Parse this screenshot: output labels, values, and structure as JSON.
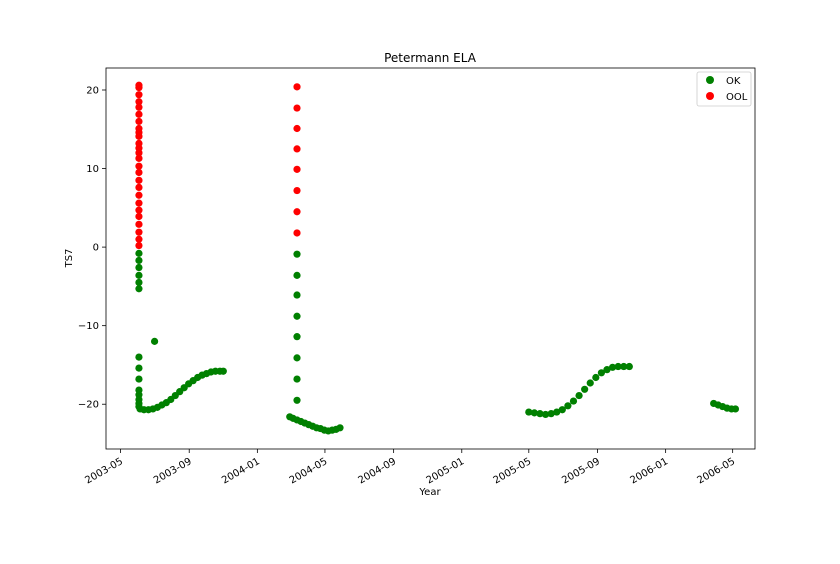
{
  "chart_data": {
    "type": "scatter",
    "title": "Petermann ELA",
    "xlabel": "Year",
    "ylabel": "TS7",
    "x_ticks": [
      "2003-05",
      "2003-09",
      "2004-01",
      "2004-05",
      "2004-09",
      "2005-01",
      "2005-05",
      "2005-09",
      "2006-01",
      "2006-05"
    ],
    "y_ticks": [
      20,
      10,
      0,
      -10,
      -20
    ],
    "y_tick_labels": [
      "20",
      "10",
      "0",
      "−10",
      "−20"
    ],
    "xlim": [
      "2003-04-05",
      "2006-06-10"
    ],
    "ylim": [
      -25.7,
      22.8
    ],
    "grid": false,
    "legend_position": "top-right",
    "colors": {
      "OK": "#008000",
      "OOL": "#ff0000"
    },
    "series": [
      {
        "name": "OK",
        "color": "#008000",
        "points": [
          [
            "2003-06-03",
            -0.8
          ],
          [
            "2003-06-03",
            -1.7
          ],
          [
            "2003-06-03",
            -2.6
          ],
          [
            "2003-06-03",
            -3.6
          ],
          [
            "2003-06-03",
            -4.5
          ],
          [
            "2003-06-03",
            -5.3
          ],
          [
            "2003-06-03",
            -14.0
          ],
          [
            "2003-06-03",
            -15.4
          ],
          [
            "2003-06-03",
            -16.8
          ],
          [
            "2003-06-03",
            -18.2
          ],
          [
            "2003-06-03",
            -18.8
          ],
          [
            "2003-06-03",
            -19.4
          ],
          [
            "2003-06-03",
            -19.9
          ],
          [
            "2003-06-03",
            -20.3
          ],
          [
            "2003-07-01",
            -12.0
          ],
          [
            "2003-06-05",
            -20.6
          ],
          [
            "2003-06-12",
            -20.7
          ],
          [
            "2003-06-20",
            -20.7
          ],
          [
            "2003-06-28",
            -20.6
          ],
          [
            "2003-07-06",
            -20.4
          ],
          [
            "2003-07-14",
            -20.1
          ],
          [
            "2003-07-22",
            -19.8
          ],
          [
            "2003-07-30",
            -19.4
          ],
          [
            "2003-08-07",
            -18.9
          ],
          [
            "2003-08-15",
            -18.4
          ],
          [
            "2003-08-23",
            -17.9
          ],
          [
            "2003-08-31",
            -17.4
          ],
          [
            "2003-09-08",
            -17.0
          ],
          [
            "2003-09-16",
            -16.6
          ],
          [
            "2003-09-24",
            -16.3
          ],
          [
            "2003-10-02",
            -16.1
          ],
          [
            "2003-10-10",
            -15.9
          ],
          [
            "2003-10-18",
            -15.8
          ],
          [
            "2003-10-26",
            -15.8
          ],
          [
            "2003-11-01",
            -15.8
          ],
          [
            "2004-03-12",
            -0.9
          ],
          [
            "2004-03-12",
            -3.6
          ],
          [
            "2004-03-12",
            -6.1
          ],
          [
            "2004-03-12",
            -8.8
          ],
          [
            "2004-03-12",
            -11.4
          ],
          [
            "2004-03-12",
            -14.1
          ],
          [
            "2004-03-12",
            -16.8
          ],
          [
            "2004-03-12",
            -19.5
          ],
          [
            "2004-02-28",
            -21.6
          ],
          [
            "2004-03-05",
            -21.8
          ],
          [
            "2004-03-12",
            -22.0
          ],
          [
            "2004-03-19",
            -22.2
          ],
          [
            "2004-03-26",
            -22.4
          ],
          [
            "2004-04-02",
            -22.6
          ],
          [
            "2004-04-09",
            -22.8
          ],
          [
            "2004-04-16",
            -23.0
          ],
          [
            "2004-04-23",
            -23.1
          ],
          [
            "2004-04-30",
            -23.3
          ],
          [
            "2004-05-07",
            -23.4
          ],
          [
            "2004-05-14",
            -23.3
          ],
          [
            "2004-05-21",
            -23.2
          ],
          [
            "2004-05-28",
            -23.0
          ],
          [
            "2005-05-01",
            -21.0
          ],
          [
            "2005-05-11",
            -21.1
          ],
          [
            "2005-05-21",
            -21.2
          ],
          [
            "2005-05-31",
            -21.3
          ],
          [
            "2005-06-10",
            -21.2
          ],
          [
            "2005-06-20",
            -21.0
          ],
          [
            "2005-06-30",
            -20.7
          ],
          [
            "2005-07-10",
            -20.2
          ],
          [
            "2005-07-20",
            -19.6
          ],
          [
            "2005-07-30",
            -18.9
          ],
          [
            "2005-08-09",
            -18.1
          ],
          [
            "2005-08-19",
            -17.3
          ],
          [
            "2005-08-29",
            -16.6
          ],
          [
            "2005-09-08",
            -16.0
          ],
          [
            "2005-09-18",
            -15.6
          ],
          [
            "2005-09-28",
            -15.3
          ],
          [
            "2005-10-08",
            -15.2
          ],
          [
            "2005-10-18",
            -15.2
          ],
          [
            "2005-10-28",
            -15.2
          ],
          [
            "2006-03-28",
            -19.9
          ],
          [
            "2006-04-05",
            -20.1
          ],
          [
            "2006-04-13",
            -20.3
          ],
          [
            "2006-04-21",
            -20.5
          ],
          [
            "2006-04-29",
            -20.6
          ],
          [
            "2006-05-06",
            -20.6
          ]
        ]
      },
      {
        "name": "OOL",
        "color": "#ff0000",
        "points": [
          [
            "2003-06-03",
            0.2
          ],
          [
            "2003-06-03",
            1.0
          ],
          [
            "2003-06-03",
            1.9
          ],
          [
            "2003-06-03",
            2.9
          ],
          [
            "2003-06-03",
            3.9
          ],
          [
            "2003-06-03",
            4.7
          ],
          [
            "2003-06-03",
            5.6
          ],
          [
            "2003-06-03",
            6.6
          ],
          [
            "2003-06-03",
            7.6
          ],
          [
            "2003-06-03",
            8.5
          ],
          [
            "2003-06-03",
            9.5
          ],
          [
            "2003-06-03",
            10.3
          ],
          [
            "2003-06-03",
            11.3
          ],
          [
            "2003-06-03",
            12.0
          ],
          [
            "2003-06-03",
            12.6
          ],
          [
            "2003-06-03",
            13.2
          ],
          [
            "2003-06-03",
            14.1
          ],
          [
            "2003-06-03",
            14.6
          ],
          [
            "2003-06-03",
            15.1
          ],
          [
            "2003-06-03",
            16.0
          ],
          [
            "2003-06-03",
            16.9
          ],
          [
            "2003-06-03",
            17.8
          ],
          [
            "2003-06-03",
            18.5
          ],
          [
            "2003-06-03",
            19.4
          ],
          [
            "2003-06-03",
            20.3
          ],
          [
            "2003-06-03",
            20.6
          ],
          [
            "2004-03-12",
            1.8
          ],
          [
            "2004-03-12",
            4.5
          ],
          [
            "2004-03-12",
            7.2
          ],
          [
            "2004-03-12",
            9.9
          ],
          [
            "2004-03-12",
            12.5
          ],
          [
            "2004-03-12",
            15.1
          ],
          [
            "2004-03-12",
            17.7
          ],
          [
            "2004-03-12",
            20.4
          ]
        ]
      }
    ]
  }
}
